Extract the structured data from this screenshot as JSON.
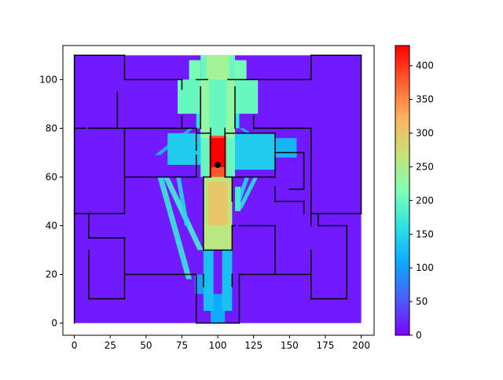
{
  "chart_data": {
    "type": "heatmap",
    "title": "",
    "xlabel": "",
    "ylabel": "",
    "xlim": [
      -8,
      209
    ],
    "ylim": [
      -5,
      114
    ],
    "x_ticks": [
      0,
      25,
      50,
      75,
      100,
      125,
      150,
      175,
      200
    ],
    "y_ticks": [
      0,
      20,
      40,
      60,
      80,
      100
    ],
    "colormap": "rainbow",
    "colorbar": {
      "min": 0,
      "max": 430,
      "ticks": [
        0,
        50,
        100,
        150,
        200,
        250,
        300,
        350,
        400
      ]
    },
    "grid": false,
    "field_extent": {
      "x": [
        0,
        200
      ],
      "y": [
        0,
        110
      ]
    },
    "background_value": 15,
    "source_point": {
      "x": 100,
      "y": 65
    },
    "zones": [
      {
        "x": [
          88,
          112
        ],
        "y": [
          60,
          110
        ],
        "value": 200
      },
      {
        "x": [
          90,
          110
        ],
        "y": [
          30,
          60
        ],
        "value": 260
      },
      {
        "x": [
          93,
          107
        ],
        "y": [
          40,
          58
        ],
        "value": 300
      },
      {
        "x": [
          94,
          106
        ],
        "y": [
          60,
          77
        ],
        "value": 380
      },
      {
        "x": [
          95,
          105
        ],
        "y": [
          64,
          76
        ],
        "value": 430
      },
      {
        "x": [
          88,
          94
        ],
        "y": [
          76,
          100
        ],
        "value": 230
      },
      {
        "x": [
          106,
          112
        ],
        "y": [
          76,
          100
        ],
        "value": 230
      },
      {
        "x": [
          85,
          88
        ],
        "y": [
          80,
          96
        ],
        "value": 160
      },
      {
        "x": [
          112,
          115
        ],
        "y": [
          80,
          96
        ],
        "value": 160
      },
      {
        "x": [
          65,
          88
        ],
        "y": [
          65,
          78
        ],
        "value": 140
      },
      {
        "x": [
          112,
          140
        ],
        "y": [
          63,
          78
        ],
        "value": 140
      },
      {
        "x": [
          135,
          155
        ],
        "y": [
          68,
          76
        ],
        "value": 120
      },
      {
        "x": [
          72,
          88
        ],
        "y": [
          86,
          100
        ],
        "value": 200
      },
      {
        "x": [
          112,
          128
        ],
        "y": [
          86,
          100
        ],
        "value": 200
      },
      {
        "x": [
          80,
          88
        ],
        "y": [
          100,
          108
        ],
        "value": 210
      },
      {
        "x": [
          112,
          120
        ],
        "y": [
          100,
          108
        ],
        "value": 210
      },
      {
        "x": [
          92,
          108
        ],
        "y": [
          100,
          110
        ],
        "value": 240
      },
      {
        "x": [
          90,
          97
        ],
        "y": [
          5,
          30
        ],
        "value": 130
      },
      {
        "x": [
          103,
          110
        ],
        "y": [
          5,
          30
        ],
        "value": 130
      },
      {
        "x": [
          95,
          105
        ],
        "y": [
          0,
          12
        ],
        "value": 110
      },
      {
        "x": [
          84,
          90
        ],
        "y": [
          12,
          20
        ],
        "value": 100
      },
      {
        "x": [
          112,
          116
        ],
        "y": [
          46,
          56
        ],
        "value": 180
      }
    ],
    "rays": [
      {
        "points": [
          [
            58,
            60
          ],
          [
            62,
            60
          ],
          [
            82,
            18
          ],
          [
            78,
            18
          ]
        ],
        "value": 170
      },
      {
        "points": [
          [
            62,
            60
          ],
          [
            66,
            60
          ],
          [
            90,
            30
          ],
          [
            86,
            30
          ]
        ],
        "value": 180
      },
      {
        "points": [
          [
            71,
            60
          ],
          [
            74,
            60
          ],
          [
            80,
            40
          ],
          [
            77,
            40
          ]
        ],
        "value": 150
      },
      {
        "points": [
          [
            119,
            60
          ],
          [
            122,
            60
          ],
          [
            116,
            50
          ],
          [
            113,
            50
          ]
        ],
        "value": 150
      },
      {
        "points": [
          [
            125,
            60
          ],
          [
            128,
            60
          ],
          [
            117,
            47
          ],
          [
            114,
            47
          ]
        ],
        "value": 160
      },
      {
        "points": [
          [
            56,
            69
          ],
          [
            60,
            69
          ],
          [
            83,
            80
          ],
          [
            80,
            80
          ]
        ],
        "value": 130
      },
      {
        "points": [
          [
            145,
            68
          ],
          [
            150,
            68
          ],
          [
            118,
            80
          ],
          [
            115,
            80
          ]
        ],
        "value": 130
      }
    ],
    "walls": [
      [
        [
          0,
          110
        ],
        [
          35,
          110
        ]
      ],
      [
        [
          35,
          110
        ],
        [
          35,
          100
        ]
      ],
      [
        [
          35,
          100
        ],
        [
          75,
          100
        ]
      ],
      [
        [
          75,
          100
        ],
        [
          75,
          96
        ]
      ],
      [
        [
          85,
          100
        ],
        [
          93,
          100
        ]
      ],
      [
        [
          107,
          100
        ],
        [
          125,
          100
        ]
      ],
      [
        [
          125,
          100
        ],
        [
          165,
          100
        ]
      ],
      [
        [
          165,
          100
        ],
        [
          165,
          110
        ]
      ],
      [
        [
          165,
          110
        ],
        [
          200,
          110
        ]
      ],
      [
        [
          200,
          110
        ],
        [
          200,
          45
        ]
      ],
      [
        [
          0,
          110
        ],
        [
          0,
          45
        ]
      ],
      [
        [
          0,
          45
        ],
        [
          35,
          45
        ]
      ],
      [
        [
          35,
          45
        ],
        [
          35,
          80
        ]
      ],
      [
        [
          0,
          80
        ],
        [
          8,
          80
        ]
      ],
      [
        [
          10,
          80
        ],
        [
          35,
          80
        ]
      ],
      [
        [
          35,
          80
        ],
        [
          85,
          80
        ]
      ],
      [
        [
          30,
          95
        ],
        [
          30,
          80
        ]
      ],
      [
        [
          75,
          85
        ],
        [
          75,
          80
        ]
      ],
      [
        [
          88,
          80
        ],
        [
          88,
          97
        ]
      ],
      [
        [
          112,
          80
        ],
        [
          112,
          97
        ]
      ],
      [
        [
          125,
          85
        ],
        [
          125,
          80
        ]
      ],
      [
        [
          125,
          80
        ],
        [
          165,
          80
        ]
      ],
      [
        [
          165,
          80
        ],
        [
          165,
          45
        ]
      ],
      [
        [
          165,
          45
        ],
        [
          200,
          45
        ]
      ],
      [
        [
          95,
          80
        ],
        [
          95,
          60
        ]
      ],
      [
        [
          105,
          80
        ],
        [
          105,
          60
        ]
      ],
      [
        [
          105,
          78
        ],
        [
          140,
          78
        ]
      ],
      [
        [
          85,
          78
        ],
        [
          95,
          78
        ]
      ],
      [
        [
          35,
          60
        ],
        [
          85,
          60
        ]
      ],
      [
        [
          85,
          60
        ],
        [
          85,
          69
        ]
      ],
      [
        [
          85,
          71
        ],
        [
          85,
          80
        ]
      ],
      [
        [
          105,
          60
        ],
        [
          140,
          60
        ]
      ],
      [
        [
          140,
          60
        ],
        [
          140,
          78
        ]
      ],
      [
        [
          140,
          70
        ],
        [
          160,
          70
        ]
      ],
      [
        [
          160,
          70
        ],
        [
          160,
          55
        ]
      ],
      [
        [
          150,
          55
        ],
        [
          160,
          55
        ]
      ],
      [
        [
          160,
          50
        ],
        [
          160,
          45
        ]
      ],
      [
        [
          140,
          50
        ],
        [
          160,
          50
        ]
      ],
      [
        [
          140,
          50
        ],
        [
          140,
          56
        ]
      ],
      [
        [
          95,
          60
        ],
        [
          90,
          60
        ]
      ],
      [
        [
          90,
          60
        ],
        [
          90,
          30
        ]
      ],
      [
        [
          90,
          30
        ],
        [
          110,
          30
        ]
      ],
      [
        [
          110,
          30
        ],
        [
          110,
          40
        ]
      ],
      [
        [
          110,
          40
        ],
        [
          112,
          40
        ]
      ],
      [
        [
          110,
          50
        ],
        [
          110,
          60
        ]
      ],
      [
        [
          115,
          40
        ],
        [
          140,
          40
        ]
      ],
      [
        [
          140,
          40
        ],
        [
          140,
          20
        ]
      ],
      [
        [
          140,
          20
        ],
        [
          165,
          20
        ]
      ],
      [
        [
          165,
          20
        ],
        [
          165,
          30
        ]
      ],
      [
        [
          165,
          40
        ],
        [
          165,
          45
        ]
      ],
      [
        [
          170,
          45
        ],
        [
          170,
          40
        ]
      ],
      [
        [
          170,
          40
        ],
        [
          190,
          40
        ]
      ],
      [
        [
          190,
          40
        ],
        [
          190,
          10
        ]
      ],
      [
        [
          190,
          10
        ],
        [
          165,
          10
        ]
      ],
      [
        [
          165,
          10
        ],
        [
          165,
          20
        ]
      ],
      [
        [
          10,
          45
        ],
        [
          10,
          35
        ]
      ],
      [
        [
          10,
          35
        ],
        [
          35,
          35
        ]
      ],
      [
        [
          35,
          35
        ],
        [
          35,
          10
        ]
      ],
      [
        [
          35,
          10
        ],
        [
          10,
          10
        ]
      ],
      [
        [
          10,
          10
        ],
        [
          10,
          30
        ]
      ],
      [
        [
          35,
          20
        ],
        [
          85,
          20
        ]
      ],
      [
        [
          85,
          20
        ],
        [
          85,
          0
        ]
      ],
      [
        [
          85,
          0
        ],
        [
          115,
          0
        ]
      ],
      [
        [
          115,
          0
        ],
        [
          115,
          20
        ]
      ],
      [
        [
          115,
          20
        ],
        [
          140,
          20
        ]
      ],
      [
        [
          90,
          20
        ],
        [
          90,
          15
        ]
      ],
      [
        [
          110,
          20
        ],
        [
          110,
          15
        ]
      ],
      [
        [
          0,
          45
        ],
        [
          0,
          0
        ]
      ]
    ]
  }
}
